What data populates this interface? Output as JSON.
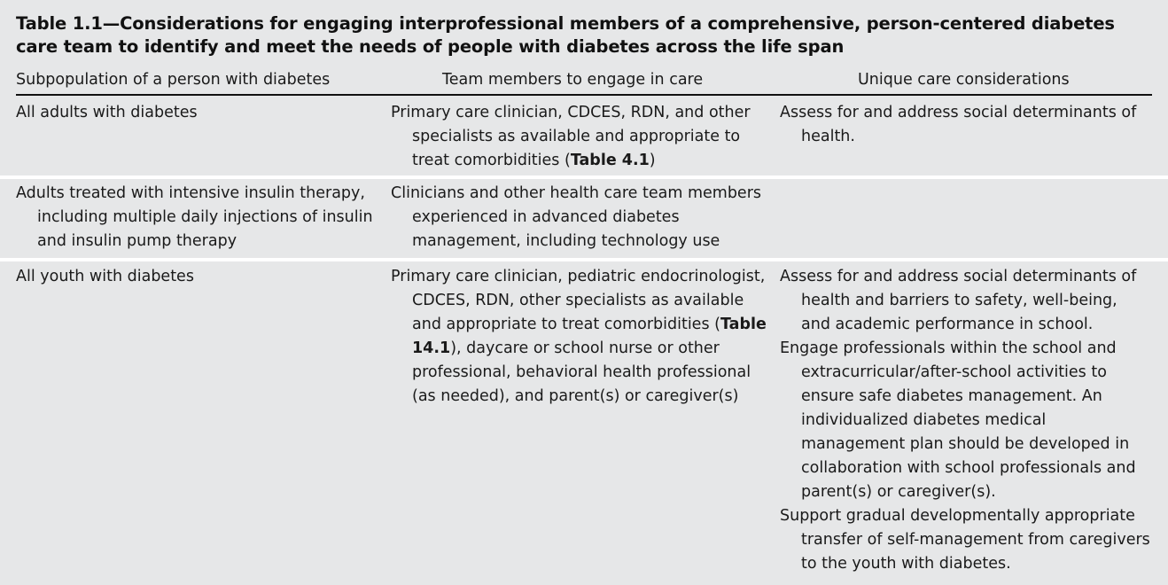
{
  "table": {
    "caption": "Table 1.1—Considerations for engaging interprofessional members of a comprehensive, person-centered diabetes care team to identify and meet the needs of people with diabetes across the life span",
    "columns": [
      "Subpopulation of a person with diabetes",
      "Team members to engage in care",
      "Unique care considerations"
    ],
    "rows": [
      {
        "subpopulation": "All adults with diabetes",
        "team_before": "Primary care clinician, CDCES, RDN, and other specialists as available and appropriate to treat comorbidities (",
        "team_ref": "Table 4.1",
        "team_after": ")",
        "considerations": [
          "Assess for and address social determinants of health."
        ]
      },
      {
        "subpopulation": "Adults treated with intensive insulin therapy, including multiple daily injections of insulin and insulin pump therapy",
        "team_before": "Clinicians and other health care team members experienced in advanced diabetes management, including technology use",
        "team_ref": "",
        "team_after": "",
        "considerations": []
      },
      {
        "subpopulation": "All youth with diabetes",
        "team_before": "Primary care clinician, pediatric endocrinologist, CDCES, RDN, other specialists as available and appropriate to treat comorbidities (",
        "team_ref": "Table 14.1",
        "team_after": "), daycare or school nurse or other professional, behavioral health professional (as needed), and parent(s) or caregiver(s)",
        "considerations": [
          "Assess for and address social determinants of health and barriers to safety, well-being, and academic performance in school.",
          "Engage professionals within the school and extracurricular/after-school activities to ensure safe diabetes management. An individualized diabetes medical management plan should be developed in collaboration with school professionals and parent(s) or caregiver(s).",
          "Support gradual developmentally appropriate transfer of self-management from caregivers to the youth with diabetes."
        ]
      }
    ]
  }
}
